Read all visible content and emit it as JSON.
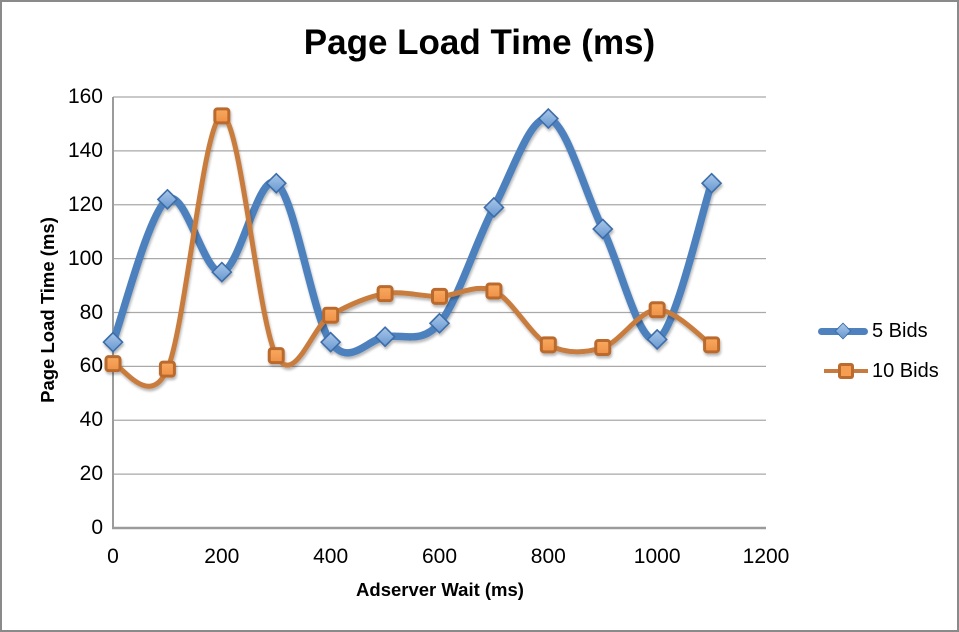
{
  "colors": {
    "background": "#FFFFFF",
    "frame_border": "#8A8A8A",
    "gridline": "#A9A9A9",
    "axis": "#9B9B9B",
    "text": "#000000",
    "series_blue": "#4E81BD",
    "series_orange": "#C87B3E"
  },
  "chart_data": {
    "type": "line",
    "title": "Page Load Time (ms)",
    "xlabel": "Adserver Wait (ms)",
    "ylabel": "Page Load Time (ms)",
    "x": [
      0,
      100,
      200,
      300,
      400,
      500,
      600,
      700,
      800,
      900,
      1000,
      1100
    ],
    "series": [
      {
        "name": "5 Bids",
        "marker": "diamond",
        "color": "#4E81BD",
        "marker_fill_top": "#A9C7EA",
        "marker_fill_bottom": "#6898D0",
        "marker_stroke": "#3C6DA8",
        "line_width": 7.5,
        "values": [
          69,
          122,
          95,
          128,
          69,
          71,
          76,
          119,
          152,
          111,
          70,
          128
        ]
      },
      {
        "name": "10 Bids",
        "marker": "square",
        "color": "#C87B3E",
        "marker_fill_top": "#F8A95F",
        "marker_fill_bottom": "#EF9147",
        "marker_stroke": "#BB6B2D",
        "line_width": 5,
        "values": [
          61,
          59,
          153,
          64,
          79,
          87,
          86,
          88,
          68,
          67,
          81,
          68
        ]
      }
    ],
    "xlim": [
      0,
      1200
    ],
    "ylim": [
      0,
      160
    ],
    "x_ticks": [
      0,
      200,
      400,
      600,
      800,
      1000,
      1200
    ],
    "y_ticks": [
      0,
      20,
      40,
      60,
      80,
      100,
      120,
      140,
      160
    ],
    "grid": true,
    "smooth": true,
    "legend_position": "right"
  }
}
